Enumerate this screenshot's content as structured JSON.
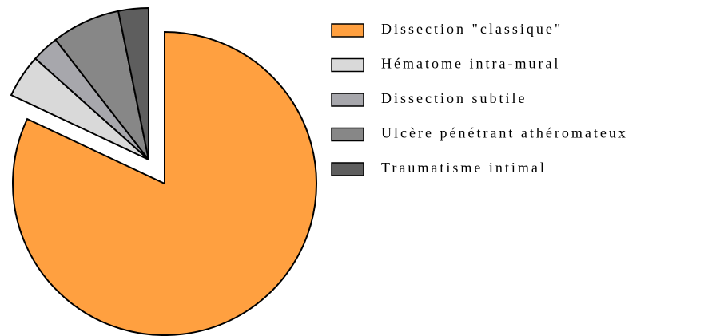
{
  "chart_data": {
    "type": "pie",
    "categories": [
      "Dissection \"classique\"",
      "Hématome intra-mural",
      "Dissection subtile",
      "Ulcère pénétrant athéromateux",
      "Traumatisme intimal"
    ],
    "values": [
      82,
      4.6,
      2.9,
      7.3,
      3.2
    ],
    "colors": [
      "#ffa040",
      "#d9d9d9",
      "#a7a7ac",
      "#878787",
      "#5e5e5e"
    ],
    "legend": "right"
  }
}
